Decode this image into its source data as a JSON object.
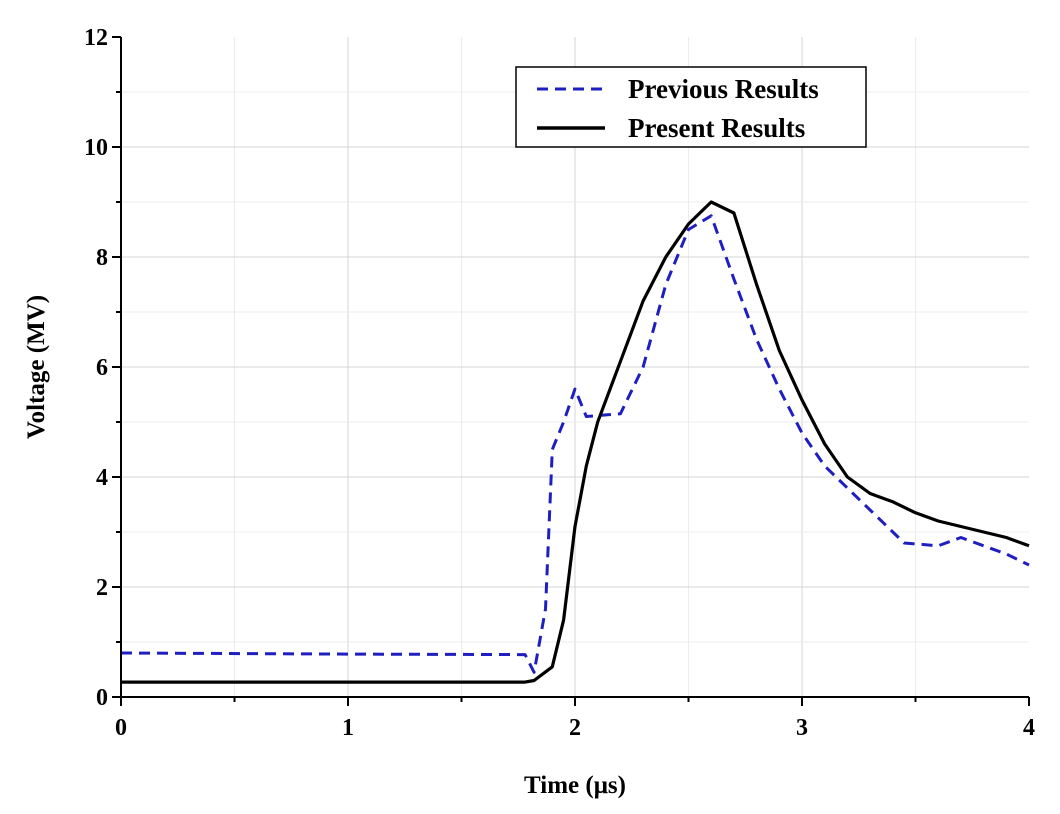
{
  "chart_data": {
    "type": "line",
    "title": "",
    "xlabel": "Time (μs)",
    "ylabel": "Voltage (MV)",
    "xlim": [
      0,
      4
    ],
    "ylim": [
      0,
      12
    ],
    "xticks": [
      0,
      1,
      2,
      3,
      4
    ],
    "xtick_labels": [
      "0",
      "1",
      "2",
      "3",
      "4"
    ],
    "yticks": [
      0,
      2,
      4,
      6,
      8,
      10,
      12
    ],
    "ytick_labels": [
      "0",
      "2",
      "4",
      "6",
      "8",
      "10",
      "12"
    ],
    "grid": true,
    "legend_position": "top-right",
    "series": [
      {
        "name": "Previous Results",
        "color": "#1f1fbf",
        "style": "dashed",
        "x": [
          0,
          1.0,
          1.78,
          1.82,
          1.87,
          1.9,
          1.95,
          2.0,
          2.05,
          2.2,
          2.3,
          2.4,
          2.5,
          2.6,
          2.7,
          2.8,
          2.9,
          3.0,
          3.1,
          3.2,
          3.3,
          3.4,
          3.45,
          3.6,
          3.7,
          3.8,
          3.9,
          4.0
        ],
        "y": [
          0.8,
          0.78,
          0.77,
          0.45,
          1.6,
          4.5,
          5.0,
          5.6,
          5.1,
          5.15,
          6.0,
          7.5,
          8.5,
          8.75,
          7.6,
          6.5,
          5.6,
          4.8,
          4.2,
          3.8,
          3.4,
          3.0,
          2.8,
          2.75,
          2.9,
          2.75,
          2.6,
          2.4
        ]
      },
      {
        "name": "Present Results",
        "color": "#000000",
        "style": "solid",
        "x": [
          0,
          1.0,
          1.78,
          1.82,
          1.9,
          1.95,
          2.0,
          2.05,
          2.1,
          2.2,
          2.3,
          2.4,
          2.5,
          2.6,
          2.7,
          2.8,
          2.9,
          3.0,
          3.1,
          3.2,
          3.3,
          3.4,
          3.5,
          3.6,
          3.7,
          3.8,
          3.9,
          4.0
        ],
        "y": [
          0.27,
          0.27,
          0.27,
          0.3,
          0.55,
          1.4,
          3.1,
          4.2,
          5.0,
          6.1,
          7.2,
          8.0,
          8.6,
          9.0,
          8.8,
          7.5,
          6.3,
          5.4,
          4.6,
          4.0,
          3.7,
          3.55,
          3.35,
          3.2,
          3.1,
          3.0,
          2.9,
          2.75
        ]
      }
    ]
  }
}
